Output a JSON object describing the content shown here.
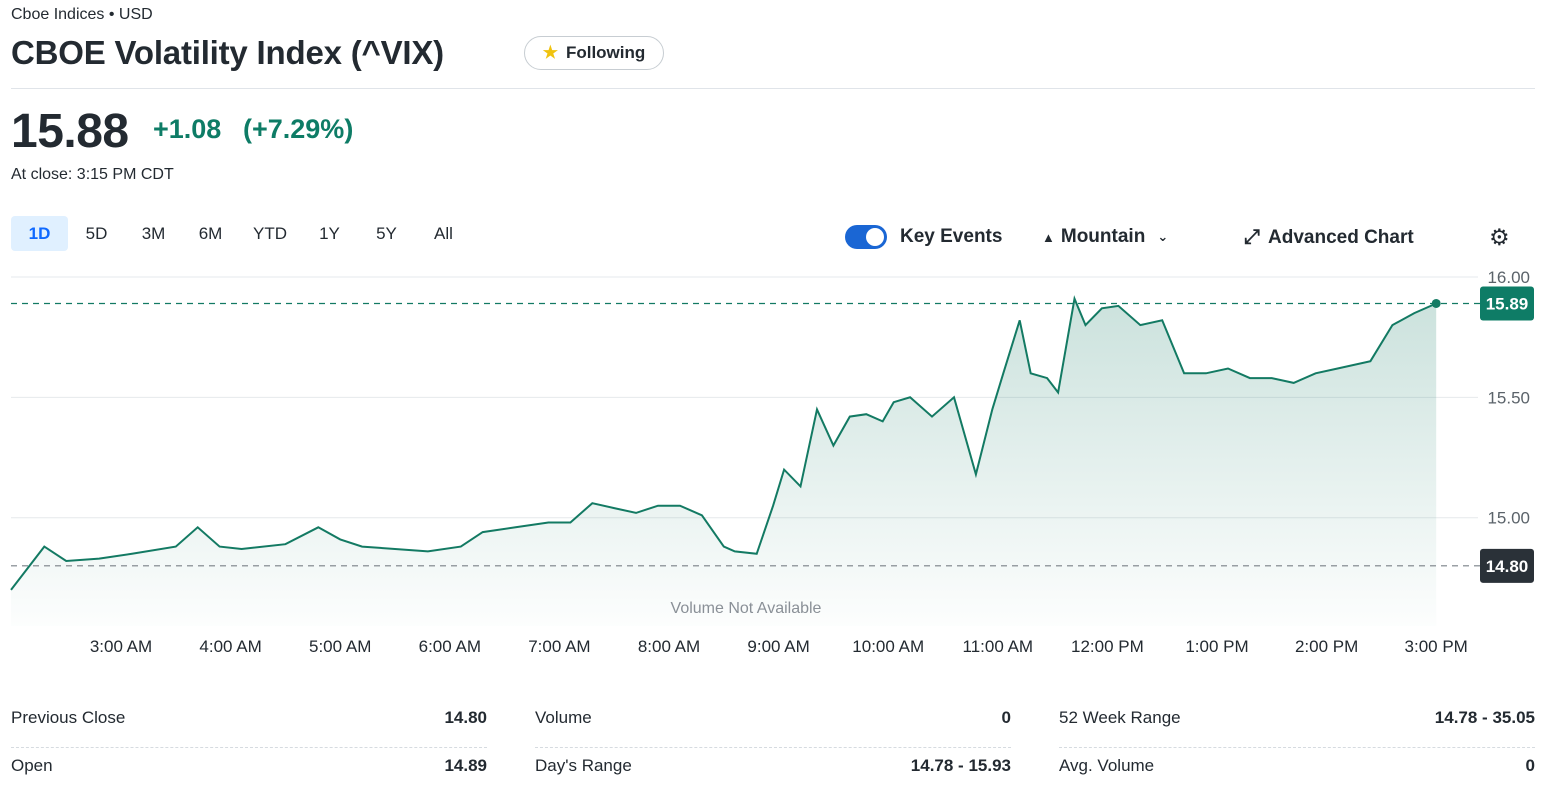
{
  "header": {
    "exchange": "Cboe Indices • USD",
    "title": "CBOE Volatility Index (^VIX)",
    "follow_label": "Following",
    "follow_icon": "star-icon"
  },
  "quote": {
    "price": "15.88",
    "change": "+1.08",
    "change_percent": "(+7.29%)",
    "close_time": "At close: 3:15 PM CDT",
    "positive_color": "#0e7c66"
  },
  "ranges": [
    "1D",
    "5D",
    "3M",
    "6M",
    "YTD",
    "1Y",
    "5Y",
    "All"
  ],
  "active_range": "1D",
  "controls": {
    "key_events": "Key Events",
    "key_events_on": true,
    "chart_style": "Mountain",
    "advanced_chart": "Advanced Chart",
    "settings_icon": "gear-icon"
  },
  "chart_data": {
    "type": "area",
    "x_ticks": [
      "3:00 AM",
      "4:00 AM",
      "5:00 AM",
      "6:00 AM",
      "7:00 AM",
      "8:00 AM",
      "9:00 AM",
      "10:00 AM",
      "11:00 AM",
      "12:00 PM",
      "1:00 PM",
      "2:00 PM",
      "3:00 PM"
    ],
    "y_ticks": [
      "16.00",
      "15.50",
      "15.00"
    ],
    "ylim": [
      14.55,
      16.0
    ],
    "current_value": "15.89",
    "previous_close_value": "14.80",
    "overlay_text": "Volume Not Available",
    "line_color": "#137a63",
    "series": [
      {
        "hours": [
          2.1,
          2.3,
          2.5,
          2.8,
          3.1,
          3.5,
          3.7,
          3.9,
          4.1,
          4.5,
          4.8,
          5.0,
          5.2,
          5.5,
          5.8,
          6.1,
          6.3,
          6.6,
          6.9,
          7.1,
          7.3,
          7.5,
          7.7,
          7.9,
          8.1,
          8.3,
          8.5,
          8.6,
          8.8,
          8.95,
          9.05,
          9.2,
          9.35,
          9.5,
          9.65,
          9.8,
          9.95,
          10.05,
          10.2,
          10.4,
          10.6,
          10.8,
          10.95,
          11.05,
          11.2,
          11.3,
          11.45,
          11.55,
          11.7,
          11.8,
          11.95,
          12.1,
          12.3,
          12.5,
          12.7,
          12.9,
          13.1,
          13.3,
          13.5,
          13.7,
          13.9,
          14.1,
          14.4,
          14.6,
          14.8,
          15.0
        ],
        "values": [
          14.7,
          14.88,
          14.82,
          14.83,
          14.85,
          14.88,
          14.96,
          14.88,
          14.87,
          14.89,
          14.96,
          14.91,
          14.88,
          14.87,
          14.86,
          14.88,
          14.94,
          14.96,
          14.98,
          14.98,
          15.06,
          15.04,
          15.02,
          15.05,
          15.05,
          15.01,
          14.88,
          14.86,
          14.85,
          15.05,
          15.2,
          15.13,
          15.45,
          15.3,
          15.42,
          15.43,
          15.4,
          15.48,
          15.5,
          15.42,
          15.5,
          15.18,
          15.45,
          15.6,
          15.82,
          15.6,
          15.58,
          15.52,
          15.91,
          15.8,
          15.87,
          15.88,
          15.8,
          15.82,
          15.6,
          15.6,
          15.62,
          15.58,
          15.58,
          15.56,
          15.6,
          15.62,
          15.65,
          15.8,
          15.85,
          15.89
        ]
      }
    ]
  },
  "stats": {
    "col1": [
      {
        "label": "Previous Close",
        "value": "14.80"
      },
      {
        "label": "Open",
        "value": "14.89"
      }
    ],
    "col2": [
      {
        "label": "Volume",
        "value": "0"
      },
      {
        "label": "Day's Range",
        "value": "14.78 - 15.93"
      }
    ],
    "col3": [
      {
        "label": "52 Week Range",
        "value": "14.78 - 35.05"
      },
      {
        "label": "Avg. Volume",
        "value": "0"
      }
    ]
  }
}
